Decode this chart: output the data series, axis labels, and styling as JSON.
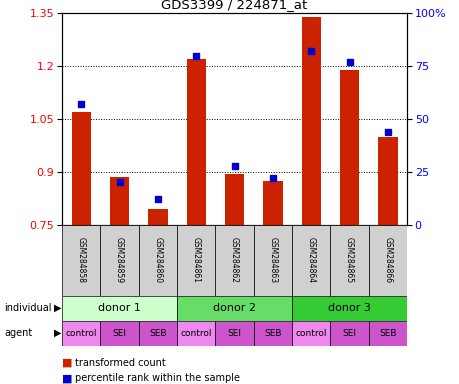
{
  "title": "GDS3399 / 224871_at",
  "samples": [
    "GSM284858",
    "GSM284859",
    "GSM284860",
    "GSM284861",
    "GSM284862",
    "GSM284863",
    "GSM284864",
    "GSM284865",
    "GSM284866"
  ],
  "transformed_count": [
    1.07,
    0.885,
    0.795,
    1.22,
    0.895,
    0.875,
    1.34,
    1.19,
    1.0
  ],
  "percentile_rank": [
    57,
    20,
    12,
    80,
    28,
    22,
    82,
    77,
    44
  ],
  "ylim_left": [
    0.75,
    1.35
  ],
  "ylim_right": [
    0,
    100
  ],
  "yticks_left": [
    0.75,
    0.9,
    1.05,
    1.2,
    1.35
  ],
  "yticks_right": [
    0,
    25,
    50,
    75,
    100
  ],
  "ytick_labels_left": [
    "0.75",
    "0.9",
    "1.05",
    "1.2",
    "1.35"
  ],
  "ytick_labels_right": [
    "0",
    "25",
    "50",
    "75",
    "100%"
  ],
  "donor_groups": [
    {
      "label": "donor 1",
      "span": [
        0,
        3
      ],
      "color": "#ccffcc"
    },
    {
      "label": "donor 2",
      "span": [
        3,
        6
      ],
      "color": "#66dd66"
    },
    {
      "label": "donor 3",
      "span": [
        6,
        9
      ],
      "color": "#33cc33"
    }
  ],
  "agent_labels": [
    "control",
    "SEI",
    "SEB",
    "control",
    "SEI",
    "SEB",
    "control",
    "SEI",
    "SEB"
  ],
  "agent_colors": [
    "#ee88ee",
    "#cc55cc",
    "#cc55cc",
    "#ee88ee",
    "#cc55cc",
    "#cc55cc",
    "#ee88ee",
    "#cc55cc",
    "#cc55cc"
  ],
  "bar_color": "#cc2200",
  "dot_color": "#0000cc",
  "label_individual": "individual",
  "label_agent": "agent",
  "legend_red": "transformed count",
  "legend_blue": "percentile rank within the sample"
}
